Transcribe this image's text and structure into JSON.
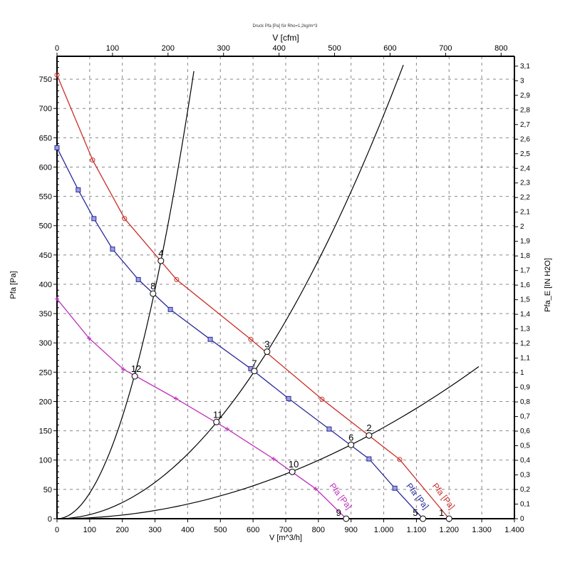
{
  "chart_data": {
    "type": "line",
    "title": "Druck Pfa [Pa] für Rho=1,2kg/m^3",
    "xlabel": "V [m^3/h]",
    "ylabel": "Pfa [Pa]",
    "x2label": "V [cfm]",
    "y2label": "Pfa_E [IN H2O]",
    "xlim": [
      0,
      1400
    ],
    "ylim": [
      0,
      789
    ],
    "x2lim_cfm": [
      0,
      824
    ],
    "y2lim_inh2o": [
      0,
      3.17
    ],
    "grid": true,
    "x_ticks": [
      "0",
      "100",
      "200",
      "300",
      "400",
      "500",
      "600",
      "700",
      "800",
      "900",
      "1.000",
      "1.100",
      "1.200",
      "1.300",
      "1.400"
    ],
    "y_ticks": [
      "0",
      "50",
      "100",
      "150",
      "200",
      "250",
      "300",
      "350",
      "400",
      "450",
      "500",
      "550",
      "600",
      "650",
      "700",
      "750"
    ],
    "x2_ticks": [
      "0",
      "100",
      "200",
      "300",
      "400",
      "500",
      "600",
      "700",
      "800"
    ],
    "y2_ticks": [
      "0",
      "0,1",
      "0,2",
      "0,3",
      "0,4",
      "0,5",
      "0,6",
      "0,7",
      "0,8",
      "0,9",
      "1",
      "1,1",
      "1,2",
      "1,3",
      "1,4",
      "1,5",
      "1,6",
      "1,7",
      "1,8",
      "1,9",
      "2",
      "2,1",
      "2,2",
      "2,3",
      "2,4",
      "2,5",
      "2,6",
      "2,7",
      "2,8",
      "2,9",
      "3",
      "3,1"
    ],
    "series": [
      {
        "name": "Pfa [Pa]",
        "color": "#c8302a",
        "marker": "circle",
        "x": [
          0,
          109,
          207,
          366,
          593,
          811,
          1049,
          1200
        ],
        "y": [
          757,
          612,
          512,
          408,
          306,
          204,
          101,
          0
        ]
      },
      {
        "name": "Pfa [Pa]",
        "color": "#2a2a9a",
        "marker": "square",
        "x": [
          0,
          65,
          113,
          170,
          249,
          347,
          469,
          593,
          709,
          833,
          955,
          1034,
          1120
        ],
        "y": [
          633,
          561,
          512,
          460,
          408,
          357,
          306,
          256,
          205,
          153,
          102,
          52,
          0
        ]
      },
      {
        "name": "Pfa [Pa]",
        "color": "#c030c0",
        "marker": "plus",
        "x": [
          0,
          98,
          203,
          364,
          521,
          663,
          792,
          885
        ],
        "y": [
          375,
          308,
          255,
          205,
          153,
          102,
          51,
          0
        ]
      }
    ],
    "system_curves": [
      {
        "k": 0.00435,
        "xmax": 419
      },
      {
        "k": 0.000689,
        "xmax": 1060
      },
      {
        "k": 0.0001557,
        "xmax": 1291
      }
    ],
    "operating_points": [
      {
        "label": "1",
        "x": 1200,
        "y": 0
      },
      {
        "label": "2",
        "x": 955,
        "y": 142
      },
      {
        "label": "3",
        "x": 643,
        "y": 285
      },
      {
        "label": "4",
        "x": 318,
        "y": 440
      },
      {
        "label": "5",
        "x": 1120,
        "y": 0
      },
      {
        "label": "6",
        "x": 900,
        "y": 126
      },
      {
        "label": "7",
        "x": 604,
        "y": 252
      },
      {
        "label": "8",
        "x": 294,
        "y": 384
      },
      {
        "label": "9",
        "x": 885,
        "y": 0
      },
      {
        "label": "10",
        "x": 720,
        "y": 80
      },
      {
        "label": "11",
        "x": 488,
        "y": 165
      },
      {
        "label": "12",
        "x": 238,
        "y": 243
      }
    ]
  }
}
